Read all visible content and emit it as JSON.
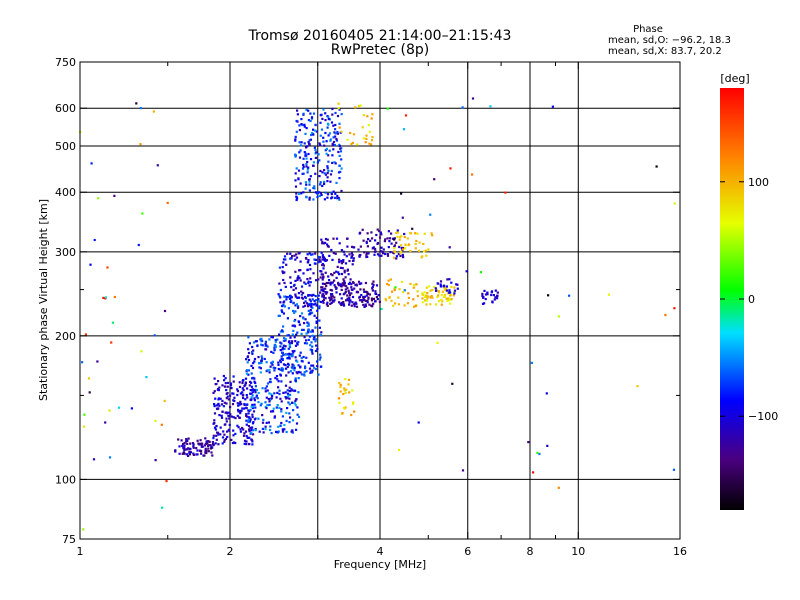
{
  "header": {
    "title_line1": "Tromsø 20160405 21:14:00–21:15:43",
    "title_line2": "RwPretec (8p)",
    "phase_label": "Phase",
    "phase_o": "mean, sd,O: −96.2, 18.3",
    "phase_x": "mean, sd,X:  83.7, 20.2"
  },
  "colorbar": {
    "unit": "[deg]",
    "min": -180,
    "max": 180,
    "ticks": [
      100,
      0,
      -100
    ],
    "tick_labels": [
      "100",
      "0",
      "−100"
    ]
  },
  "chart_data": {
    "type": "scatter",
    "xlabel": "Frequency [MHz]",
    "ylabel": "Stationary phase Virtual Height [km]",
    "xscale": "log",
    "yscale": "log",
    "xlim": [
      1,
      16
    ],
    "ylim": [
      75,
      750
    ],
    "grid": true,
    "x_ticks": [
      1,
      2,
      4,
      6,
      8,
      10,
      16
    ],
    "x_tick_labels": [
      "1",
      "2",
      "4",
      "6",
      "8",
      "10",
      "16"
    ],
    "x_minor_ticks": [
      1.5,
      3,
      5,
      7,
      9
    ],
    "y_ticks": [
      75,
      100,
      200,
      300,
      400,
      500,
      600,
      750
    ],
    "y_tick_labels": [
      "75",
      "100",
      "200",
      "300",
      "400",
      "500",
      "600",
      "750"
    ],
    "y_minor_ticks": [
      150,
      250
    ],
    "x_grid_lines": [
      2,
      3,
      4,
      6,
      8,
      10
    ],
    "y_grid_lines": [
      100,
      200,
      300,
      400,
      500,
      600
    ],
    "clusters": [
      {
        "x": [
          1.55,
          1.85
        ],
        "y": [
          112,
          122
        ],
        "n": 90,
        "phase": [
          -150,
          -100
        ]
      },
      {
        "x": [
          1.85,
          2.25
        ],
        "y": [
          118,
          165
        ],
        "n": 220,
        "phase": [
          -130,
          -80
        ]
      },
      {
        "x": [
          2.15,
          2.75
        ],
        "y": [
          125,
          200
        ],
        "n": 300,
        "phase": [
          -120,
          -40
        ]
      },
      {
        "x": [
          2.5,
          3.05
        ],
        "y": [
          165,
          245
        ],
        "n": 220,
        "phase": [
          -110,
          -50
        ]
      },
      {
        "x": [
          2.5,
          3.1
        ],
        "y": [
          230,
          300
        ],
        "n": 120,
        "phase": [
          -130,
          -70
        ]
      },
      {
        "x": [
          3.05,
          4.0
        ],
        "y": [
          230,
          260
        ],
        "n": 170,
        "phase": [
          -150,
          -95
        ]
      },
      {
        "x": [
          3.0,
          3.55
        ],
        "y": [
          255,
          320
        ],
        "n": 90,
        "phase": [
          -140,
          -90
        ]
      },
      {
        "x": [
          3.6,
          4.5
        ],
        "y": [
          290,
          335
        ],
        "n": 80,
        "phase": [
          -140,
          -95
        ]
      },
      {
        "x": [
          2.7,
          3.35
        ],
        "y": [
          385,
          600
        ],
        "n": 240,
        "phase": [
          -120,
          -45
        ]
      },
      {
        "x": [
          3.3,
          3.9
        ],
        "y": [
          500,
          620
        ],
        "n": 28,
        "phase": [
          60,
          120
        ]
      },
      {
        "x": [
          3.3,
          3.55
        ],
        "y": [
          135,
          165
        ],
        "n": 26,
        "phase": [
          60,
          120
        ]
      },
      {
        "x": [
          4.25,
          5.1
        ],
        "y": [
          290,
          330
        ],
        "n": 40,
        "phase": [
          70,
          110
        ]
      },
      {
        "x": [
          4.1,
          4.8
        ],
        "y": [
          230,
          265
        ],
        "n": 35,
        "phase": [
          70,
          115
        ]
      },
      {
        "x": [
          4.85,
          5.65
        ],
        "y": [
          232,
          255
        ],
        "n": 60,
        "phase": [
          60,
          110
        ]
      },
      {
        "x": [
          5.15,
          5.75
        ],
        "y": [
          245,
          265
        ],
        "n": 22,
        "phase": [
          -120,
          -80
        ]
      },
      {
        "x": [
          6.4,
          6.9
        ],
        "y": [
          232,
          250
        ],
        "n": 25,
        "phase": [
          -120,
          -90
        ]
      },
      {
        "x": [
          1.0,
          1.5
        ],
        "y": [
          78,
          620
        ],
        "n": 45,
        "phase": [
          -180,
          180
        ]
      },
      {
        "x": [
          4.0,
          16.0
        ],
        "y": [
          95,
          650
        ],
        "n": 45,
        "phase": [
          -180,
          180
        ]
      }
    ]
  }
}
